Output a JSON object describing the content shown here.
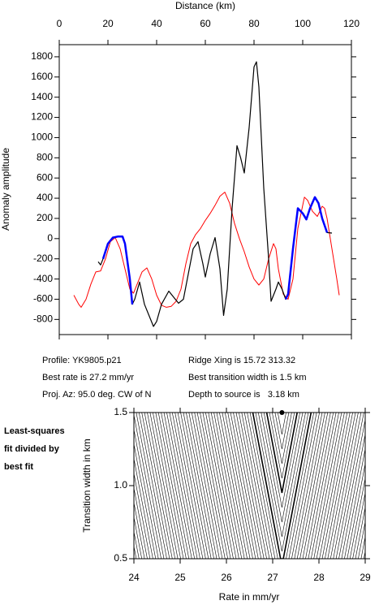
{
  "chart_data": [
    {
      "type": "line",
      "xlabel": "Distance (km)",
      "ylabel": "Anomaly amplitude",
      "xlim": [
        0,
        120
      ],
      "xticks": [
        0,
        20,
        40,
        60,
        80,
        100,
        120
      ],
      "ylim": [
        -950,
        1920
      ],
      "yticks": [
        -800,
        -600,
        -400,
        -200,
        0,
        200,
        400,
        600,
        800,
        1000,
        1200,
        1400,
        1600,
        1800
      ],
      "series": [
        {
          "color": "#ff0000",
          "width": 1,
          "x": [
            6,
            8,
            9,
            11,
            13,
            15,
            17,
            19,
            21,
            23,
            25,
            27,
            29,
            30.5,
            32,
            34,
            36,
            38,
            40,
            42,
            44,
            46,
            48,
            50,
            52,
            54,
            56,
            58,
            60,
            62,
            64,
            66,
            68,
            70,
            72,
            74,
            76,
            78,
            80,
            82,
            84,
            86,
            88,
            89,
            90,
            92,
            94,
            96,
            98,
            100.7,
            102,
            104,
            106,
            108,
            109,
            110,
            112,
            114,
            115
          ],
          "values": [
            -560,
            -650,
            -680,
            -600,
            -450,
            -330,
            -320,
            -200,
            -30,
            10,
            -100,
            -300,
            -500,
            -540,
            -450,
            -330,
            -290,
            -400,
            -560,
            -660,
            -680,
            -670,
            -620,
            -500,
            -250,
            -50,
            40,
            100,
            180,
            250,
            330,
            420,
            460,
            350,
            150,
            0,
            -130,
            -280,
            -400,
            -460,
            -400,
            -200,
            -50,
            -100,
            -300,
            -550,
            -600,
            -400,
            100,
            410,
            380,
            270,
            220,
            320,
            300,
            200,
            -100,
            -400,
            -560
          ]
        },
        {
          "color": "#000000",
          "width": 1.2,
          "x": [
            16,
            17,
            18,
            20,
            22,
            24,
            26,
            27,
            29,
            30,
            31,
            33,
            35,
            38.7,
            40,
            42,
            45,
            47,
            49,
            51,
            53,
            55,
            57,
            59,
            60,
            62,
            64,
            66,
            67.5,
            69,
            71,
            73,
            74.5,
            76,
            78,
            80,
            81,
            82,
            84,
            86,
            87,
            89,
            90,
            91.5,
            93,
            94,
            96,
            98,
            100,
            101.5,
            103,
            105,
            106.5,
            108,
            110,
            112
          ],
          "values": [
            -230,
            -260,
            -200,
            -50,
            10,
            20,
            20,
            -50,
            -400,
            -650,
            -600,
            -430,
            -650,
            -870,
            -820,
            -650,
            -520,
            -580,
            -640,
            -600,
            -350,
            -100,
            -30,
            -250,
            -380,
            -150,
            10,
            -300,
            -760,
            -500,
            300,
            920,
            800,
            650,
            1100,
            1700,
            1750,
            1500,
            500,
            -200,
            -620,
            -500,
            -430,
            -500,
            -600,
            -550,
            -100,
            300,
            250,
            190,
            300,
            410,
            350,
            200,
            60,
            55
          ]
        },
        {
          "color": "#0000ff",
          "width": 2.5,
          "x": [
            18,
            20,
            22,
            24,
            26,
            27,
            29,
            30
          ],
          "values": [
            -200,
            -50,
            10,
            20,
            20,
            -50,
            -400,
            -650
          ]
        },
        {
          "color": "#0000ff",
          "width": 2.5,
          "x": [
            93,
            94,
            96,
            98,
            100,
            101.5,
            103,
            105,
            106.5,
            108,
            110
          ],
          "values": [
            -600,
            -550,
            -100,
            300,
            250,
            190,
            300,
            410,
            350,
            200,
            60
          ]
        }
      ]
    },
    {
      "type": "contour",
      "xlabel": "Rate in mm/yr",
      "ylabel": "Transition width in km",
      "xlim": [
        24,
        29
      ],
      "xticks": [
        24,
        25,
        26,
        27,
        28,
        29
      ],
      "ylim": [
        0.5,
        1.5
      ],
      "yticks": [
        {
          "value": 0.5,
          "label": "0.5"
        },
        {
          "value": 1.0,
          "label": "1.0"
        },
        {
          "value": 1.5,
          "label": "1.5"
        }
      ],
      "series": [
        {
          "color": "#000000",
          "x": [
            27.2
          ],
          "values": [
            1.5
          ]
        }
      ]
    }
  ],
  "info": {
    "profile": "Profile: YK9805.p21",
    "ridge": "Ridge Xing is 15.72 313.32",
    "rate": "Best rate is 27.2 mm/yr",
    "transition": "Best transition width is 1.5 km",
    "azimuth": "Proj. Az: 95.0 deg. CW of N",
    "depth": "Depth to source is   3.18 km",
    "note": [
      "Least-squares",
      "fit divided by",
      "best fit"
    ]
  }
}
